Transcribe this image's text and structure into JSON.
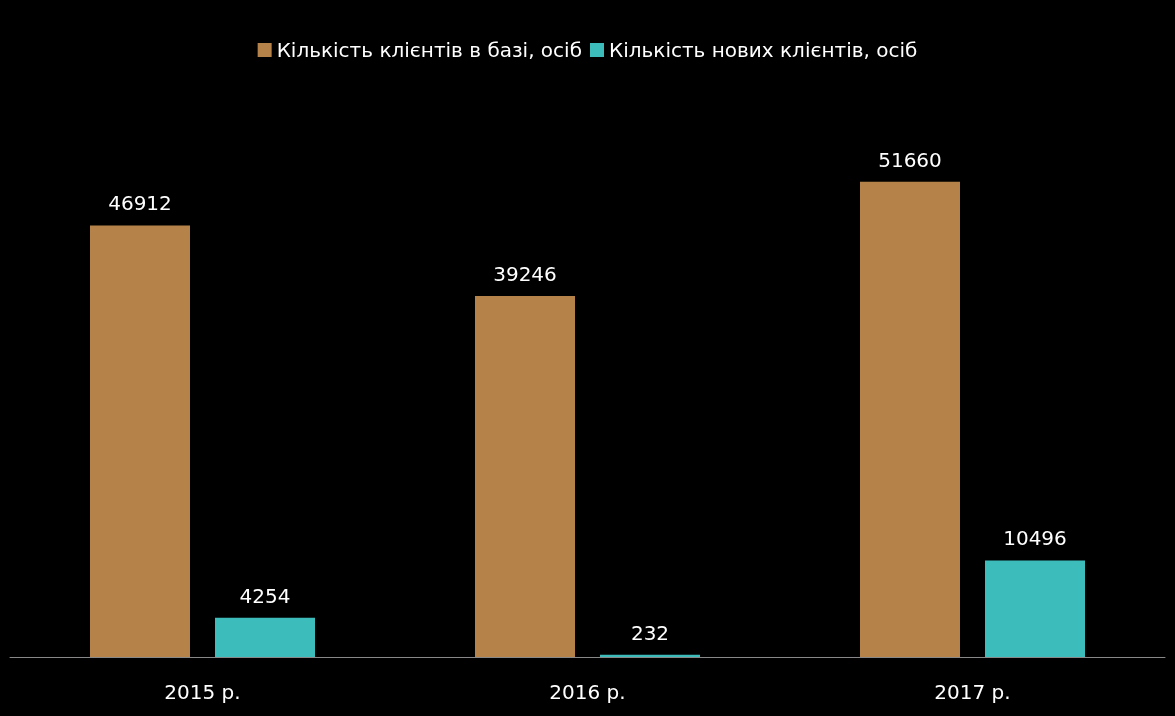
{
  "chart_data": {
    "type": "bar",
    "categories": [
      "2015 р.",
      "2016 р.",
      "2017 р."
    ],
    "series": [
      {
        "name": "Кількість клієнтів в базі, осіб",
        "color": "#b5834a",
        "values": [
          46912,
          39246,
          51660
        ]
      },
      {
        "name": "Кількість нових клієнтів, осіб",
        "color": "#3dbcbc",
        "values": [
          4254,
          232,
          10496
        ]
      }
    ],
    "data_labels": true,
    "legend": "top",
    "grid": false
  }
}
